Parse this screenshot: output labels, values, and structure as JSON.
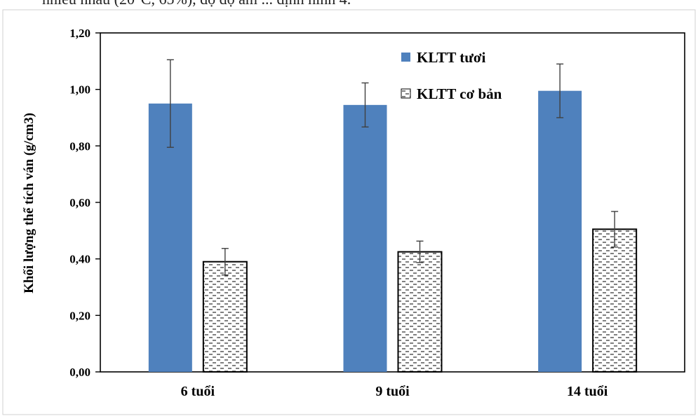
{
  "caption_fragment": "nhiều nhau (20°C, 65%), độ độ ẩm ... định hình 4.",
  "colors": {
    "fresh": "#4f81bd",
    "base_fill": "#ffffff",
    "base_stroke": "#000000",
    "error": "#404040"
  },
  "chart_data": {
    "type": "bar",
    "title": "",
    "xlabel": "",
    "ylabel": "Khối lượng thể tích ván (g/cm3)",
    "categories": [
      "6 tuổi",
      "9 tuổi",
      "14 tuổi"
    ],
    "ylim": [
      0,
      1.2
    ],
    "yticks": [
      "0,00",
      "0,20",
      "0,40",
      "0,60",
      "0,80",
      "1,00",
      "1,20"
    ],
    "grid": false,
    "legend_position": "top-right",
    "series": [
      {
        "name": "KLTT tươi",
        "values": [
          0.95,
          0.945,
          0.995
        ],
        "error": [
          0.155,
          0.078,
          0.095
        ],
        "pattern": "solid"
      },
      {
        "name": "KLTT cơ bản",
        "values": [
          0.39,
          0.425,
          0.505
        ],
        "error": [
          0.047,
          0.038,
          0.063
        ],
        "pattern": "dashed-hatch"
      }
    ]
  }
}
